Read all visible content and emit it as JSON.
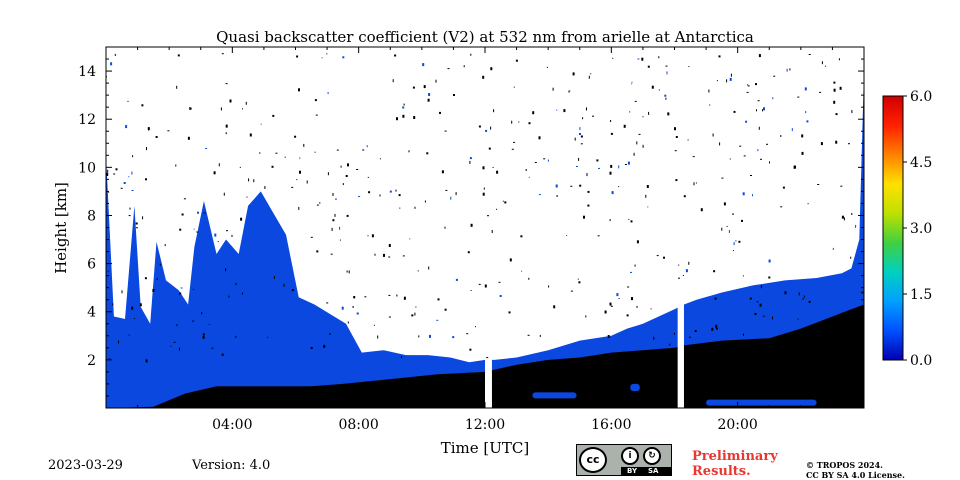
{
  "chart_data": {
    "type": "heatmap",
    "title": "Quasi backscatter coefficient (V2) at 532 nm from arielle at Antarctica",
    "xlabel": "Time [UTC]",
    "ylabel": "Height [km]",
    "x_range_hours": [
      0,
      24
    ],
    "ylim": [
      0,
      15
    ],
    "x_ticks": [
      {
        "hour": 4,
        "label": "04:00"
      },
      {
        "hour": 8,
        "label": "08:00"
      },
      {
        "hour": 12,
        "label": "12:00"
      },
      {
        "hour": 16,
        "label": "16:00"
      },
      {
        "hour": 20,
        "label": "20:00"
      }
    ],
    "y_ticks": [
      {
        "value": 2,
        "label": "2"
      },
      {
        "value": 4,
        "label": "4"
      },
      {
        "value": 6,
        "label": "6"
      },
      {
        "value": 8,
        "label": "8"
      },
      {
        "value": 10,
        "label": "10"
      },
      {
        "value": 12,
        "label": "12"
      },
      {
        "value": 14,
        "label": "14"
      }
    ],
    "colorbar": {
      "range": [
        0,
        6
      ],
      "ticks": [
        "0.0",
        "1.5",
        "3.0",
        "4.5",
        "6.0"
      ],
      "colors": [
        "#0000b0",
        "#0050ff",
        "#00a0ff",
        "#00d0c0",
        "#40d040",
        "#c0e000",
        "#ffe000",
        "#ff8000",
        "#ff2000",
        "#d00000"
      ]
    },
    "colors": {
      "signal": "#0a48e0",
      "black": "#000000"
    },
    "data_gaps_hours": [
      [
        12.0,
        12.22
      ],
      [
        18.1,
        18.3
      ]
    ],
    "signal_top_km": [
      [
        0.0,
        10.5
      ],
      [
        0.25,
        3.8
      ],
      [
        0.6,
        3.7
      ],
      [
        0.9,
        8.4
      ],
      [
        1.1,
        4.2
      ],
      [
        1.4,
        3.5
      ],
      [
        1.6,
        6.9
      ],
      [
        1.9,
        5.3
      ],
      [
        2.3,
        4.9
      ],
      [
        2.6,
        4.3
      ],
      [
        2.8,
        6.7
      ],
      [
        3.1,
        8.6
      ],
      [
        3.5,
        6.4
      ],
      [
        3.8,
        7.0
      ],
      [
        4.2,
        6.4
      ],
      [
        4.5,
        8.4
      ],
      [
        4.9,
        9.0
      ],
      [
        5.3,
        8.1
      ],
      [
        5.7,
        7.2
      ],
      [
        6.1,
        4.6
      ],
      [
        6.6,
        4.3
      ],
      [
        7.1,
        3.9
      ],
      [
        7.6,
        3.5
      ],
      [
        8.1,
        2.3
      ],
      [
        8.8,
        2.4
      ],
      [
        9.5,
        2.2
      ],
      [
        10.2,
        2.2
      ],
      [
        10.9,
        2.1
      ],
      [
        11.5,
        1.9
      ],
      [
        12.0,
        2.0
      ],
      [
        12.3,
        2.0
      ],
      [
        13.0,
        2.1
      ],
      [
        14.0,
        2.4
      ],
      [
        15.0,
        2.8
      ],
      [
        16.0,
        3.0
      ],
      [
        16.5,
        3.3
      ],
      [
        17.0,
        3.5
      ],
      [
        17.5,
        3.8
      ],
      [
        18.0,
        4.1
      ],
      [
        18.3,
        4.3
      ],
      [
        18.7,
        4.5
      ],
      [
        19.5,
        4.8
      ],
      [
        20.5,
        5.1
      ],
      [
        21.5,
        5.3
      ],
      [
        22.5,
        5.4
      ],
      [
        23.3,
        5.6
      ],
      [
        23.6,
        5.8
      ],
      [
        23.85,
        7.0
      ],
      [
        24.0,
        14.0
      ]
    ],
    "black_top_km": [
      [
        0.0,
        0.0
      ],
      [
        1.5,
        0.05
      ],
      [
        2.5,
        0.6
      ],
      [
        3.5,
        0.9
      ],
      [
        5.0,
        0.9
      ],
      [
        6.5,
        0.9
      ],
      [
        7.5,
        1.0
      ],
      [
        9.0,
        1.2
      ],
      [
        10.5,
        1.4
      ],
      [
        12.0,
        1.5
      ],
      [
        13.0,
        1.8
      ],
      [
        14.0,
        2.0
      ],
      [
        15.0,
        2.1
      ],
      [
        16.0,
        2.3
      ],
      [
        17.0,
        2.4
      ],
      [
        18.0,
        2.5
      ],
      [
        18.3,
        2.6
      ],
      [
        19.5,
        2.8
      ],
      [
        21.0,
        2.9
      ],
      [
        22.0,
        3.3
      ],
      [
        23.0,
        3.8
      ],
      [
        23.6,
        4.1
      ],
      [
        24.0,
        4.3
      ]
    ],
    "blue_patches_km": [
      [
        13.5,
        14.9,
        0.4,
        0.65
      ],
      [
        16.6,
        16.9,
        0.7,
        1.0
      ],
      [
        19.0,
        22.5,
        0.1,
        0.35
      ]
    ]
  },
  "footer": {
    "date": "2023-03-29",
    "version": "Version: 4.0",
    "license_cc": "cc",
    "license_by": "BY",
    "license_sa": "SA",
    "preliminary_line1": "Preliminary",
    "preliminary_line2": "Results.",
    "copyright_line1": "© TROPOS 2024.",
    "copyright_line2": "CC BY SA 4.0 License."
  }
}
